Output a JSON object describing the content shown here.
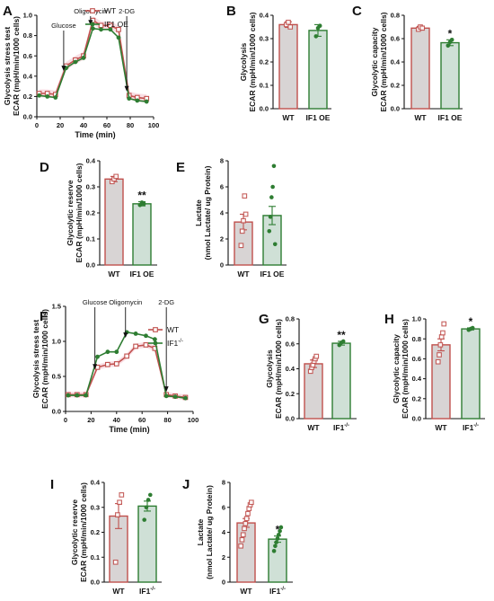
{
  "colors": {
    "wt": "#c0504d",
    "wt_fill": "#d8d4d4",
    "ko": "#2e7d32",
    "ko_fill": "#cfe0d6",
    "axis": "#111111",
    "pink": "#f2b8c6"
  },
  "chart_data": [
    {
      "id": "A",
      "type": "line",
      "letter": "A",
      "ylabel_lines": [
        "Glycolysis stress test",
        "ECAR (mpH/min/1000 cells)"
      ],
      "xlabel": "Time (min)",
      "xlim": [
        0,
        100
      ],
      "xticks": [
        0,
        20,
        40,
        60,
        80,
        100
      ],
      "ylim": [
        0,
        1.0
      ],
      "yticks": [
        0.0,
        0.2,
        0.4,
        0.6,
        0.8,
        1.0
      ],
      "series": [
        {
          "name": "WT",
          "color": "wt",
          "marker": "square",
          "x": [
            2,
            9,
            16,
            25,
            33,
            40,
            48,
            55,
            63,
            70,
            79,
            86,
            94
          ],
          "y": [
            0.23,
            0.23,
            0.22,
            0.5,
            0.56,
            0.6,
            0.95,
            0.9,
            0.9,
            0.86,
            0.21,
            0.19,
            0.18
          ]
        },
        {
          "name": "IF1 OE",
          "color": "ko",
          "marker": "circle",
          "x": [
            2,
            9,
            16,
            25,
            33,
            40,
            48,
            55,
            63,
            70,
            79,
            86,
            94
          ],
          "y": [
            0.21,
            0.2,
            0.19,
            0.48,
            0.54,
            0.58,
            0.87,
            0.86,
            0.86,
            0.78,
            0.18,
            0.16,
            0.15
          ]
        }
      ],
      "annotations": [
        {
          "label": "Glucose",
          "x": 23
        },
        {
          "label": "Oligomycin",
          "x": 46
        },
        {
          "label": "2-DG",
          "x": 77
        }
      ]
    },
    {
      "id": "B",
      "type": "bar",
      "letter": "B",
      "ylabel_lines": [
        "Glycolysis",
        "ECAR (mpH/min/1000 cells)"
      ],
      "categories": [
        "WT",
        "IF1 OE"
      ],
      "values": [
        0.36,
        0.335
      ],
      "errors": [
        0.012,
        0.025
      ],
      "ylim": [
        0,
        0.4
      ],
      "yticks": [
        0.0,
        0.1,
        0.2,
        0.3,
        0.4
      ],
      "points": [
        [
          0.36,
          0.37,
          0.35
        ],
        [
          0.31,
          0.345,
          0.355
        ]
      ],
      "sig": [
        "",
        ""
      ]
    },
    {
      "id": "C",
      "type": "bar",
      "letter": "C",
      "ylabel_lines": [
        "Glycolytic capacity",
        "ECAR (mpH/min/1000 cells)"
      ],
      "categories": [
        "WT",
        "IF1 OE"
      ],
      "values": [
        0.69,
        0.565
      ],
      "errors": [
        0.015,
        0.025
      ],
      "ylim": [
        0,
        0.8
      ],
      "yticks": [
        0.0,
        0.2,
        0.4,
        0.6,
        0.8
      ],
      "points": [
        [
          0.68,
          0.7,
          0.69
        ],
        [
          0.54,
          0.57,
          0.59
        ]
      ],
      "sig": [
        "",
        "*"
      ]
    },
    {
      "id": "D",
      "type": "bar",
      "letter": "D",
      "ylabel_lines": [
        "Glycolytic reserve",
        "ECAR (mpH/min/1000 cells)"
      ],
      "categories": [
        "WT",
        "IF1 OE"
      ],
      "values": [
        0.33,
        0.235
      ],
      "errors": [
        0.01,
        0.008
      ],
      "ylim": [
        0,
        0.4
      ],
      "yticks": [
        0.0,
        0.1,
        0.2,
        0.3,
        0.4
      ],
      "points": [
        [
          0.32,
          0.33,
          0.34
        ],
        [
          0.23,
          0.24,
          0.235
        ]
      ],
      "sig": [
        "",
        "**"
      ]
    },
    {
      "id": "E",
      "type": "bar",
      "letter": "E",
      "ylabel_lines": [
        "Lactate",
        "(nmol Lactate/ ug Protein)"
      ],
      "categories": [
        "WT",
        "IF1 OE"
      ],
      "values": [
        3.3,
        3.8
      ],
      "errors": [
        0.6,
        0.7
      ],
      "ylim": [
        0,
        8
      ],
      "yticks": [
        0,
        2,
        4,
        6,
        8
      ],
      "points": [
        [
          1.5,
          2.6,
          3.4,
          5.3,
          3.9
        ],
        [
          2.6,
          3.7,
          5.2,
          6.0,
          7.6,
          1.6
        ]
      ],
      "sig": [
        "",
        ""
      ]
    },
    {
      "id": "F",
      "type": "line",
      "letter": "F",
      "ylabel_lines": [
        "Glycolysis stress test",
        "ECAR (mpH/min/1000 cells)"
      ],
      "xlabel": "Time (min)",
      "xlim": [
        0,
        100
      ],
      "xticks": [
        0,
        20,
        40,
        60,
        80,
        100
      ],
      "ylim": [
        0,
        1.5
      ],
      "yticks": [
        0.0,
        0.5,
        1.0,
        1.5
      ],
      "series": [
        {
          "name": "WT",
          "color": "wt",
          "marker": "square",
          "x": [
            2,
            9,
            16,
            25,
            33,
            40,
            48,
            55,
            63,
            70,
            79,
            86,
            94
          ],
          "y": [
            0.24,
            0.24,
            0.24,
            0.63,
            0.67,
            0.68,
            0.79,
            0.93,
            0.95,
            0.9,
            0.24,
            0.22,
            0.2
          ]
        },
        {
          "name": "IF1",
          "sup": "-/-",
          "color": "ko",
          "marker": "circle",
          "x": [
            2,
            9,
            16,
            25,
            33,
            40,
            48,
            55,
            63,
            70,
            79,
            86,
            94
          ],
          "y": [
            0.23,
            0.23,
            0.23,
            0.78,
            0.85,
            0.85,
            1.13,
            1.11,
            1.08,
            1.03,
            0.22,
            0.21,
            0.19
          ]
        }
      ],
      "annotations": [
        {
          "label": "Glucose",
          "x": 23
        },
        {
          "label": "Oligomycin",
          "x": 47
        },
        {
          "label": "2-DG",
          "x": 79
        }
      ]
    },
    {
      "id": "G",
      "type": "bar",
      "letter": "G",
      "ylabel_lines": [
        "Glycolysis",
        "ECAR (mpH/min/1000 cells)"
      ],
      "categories": [
        "WT",
        "IF1"
      ],
      "cat_sup": [
        "",
        "-/-"
      ],
      "values": [
        0.44,
        0.605
      ],
      "errors": [
        0.03,
        0.015
      ],
      "ylim": [
        0,
        0.8
      ],
      "yticks": [
        0.0,
        0.2,
        0.4,
        0.6,
        0.8
      ],
      "points": [
        [
          0.38,
          0.41,
          0.43,
          0.46,
          0.48,
          0.5
        ],
        [
          0.59,
          0.61,
          0.62
        ]
      ],
      "sig": [
        "",
        "**"
      ]
    },
    {
      "id": "H",
      "type": "bar",
      "letter": "H",
      "ylabel_lines": [
        "Glycolytic capacity",
        "ECAR (mpH/min/1000 cells)"
      ],
      "categories": [
        "WT",
        "IF1"
      ],
      "cat_sup": [
        "",
        "-/-"
      ],
      "values": [
        0.74,
        0.9
      ],
      "errors": [
        0.06,
        0.01
      ],
      "ylim": [
        0,
        1.0
      ],
      "yticks": [
        0.0,
        0.2,
        0.4,
        0.6,
        0.8,
        1.0
      ],
      "points": [
        [
          0.57,
          0.64,
          0.74,
          0.82,
          0.86,
          0.95
        ],
        [
          0.89,
          0.9,
          0.91
        ]
      ],
      "sig": [
        "",
        "*"
      ]
    },
    {
      "id": "I",
      "type": "bar",
      "letter": "I",
      "ylabel_lines": [
        "Glycolytic reserve",
        "ECAR (mpH/min/1000 cells)"
      ],
      "categories": [
        "WT",
        "IF1"
      ],
      "cat_sup": [
        "",
        "-/-"
      ],
      "values": [
        0.265,
        0.305
      ],
      "errors": [
        0.05,
        0.02
      ],
      "ylim": [
        0,
        0.4
      ],
      "yticks": [
        0.0,
        0.1,
        0.2,
        0.3,
        0.4
      ],
      "points": [
        [
          0.08,
          0.27,
          0.32,
          0.35
        ],
        [
          0.25,
          0.3,
          0.33,
          0.35
        ]
      ],
      "sig": [
        "",
        ""
      ]
    },
    {
      "id": "J",
      "type": "bar",
      "letter": "J",
      "ylabel_lines": [
        "Lactate",
        "(nmol Lactate/ ug Protein)"
      ],
      "categories": [
        "WT",
        "IF1"
      ],
      "cat_sup": [
        "",
        "-/-"
      ],
      "values": [
        4.75,
        3.45
      ],
      "errors": [
        0.35,
        0.25
      ],
      "ylim": [
        0,
        8
      ],
      "yticks": [
        0,
        2,
        4,
        6,
        8
      ],
      "points": [
        [
          2.9,
          3.4,
          3.8,
          4.3,
          4.7,
          5.1,
          5.5,
          5.9,
          6.2,
          6.4
        ],
        [
          2.5,
          2.9,
          3.2,
          3.5,
          3.8,
          4.1,
          4.4
        ]
      ],
      "sig": [
        "",
        "*"
      ]
    }
  ]
}
